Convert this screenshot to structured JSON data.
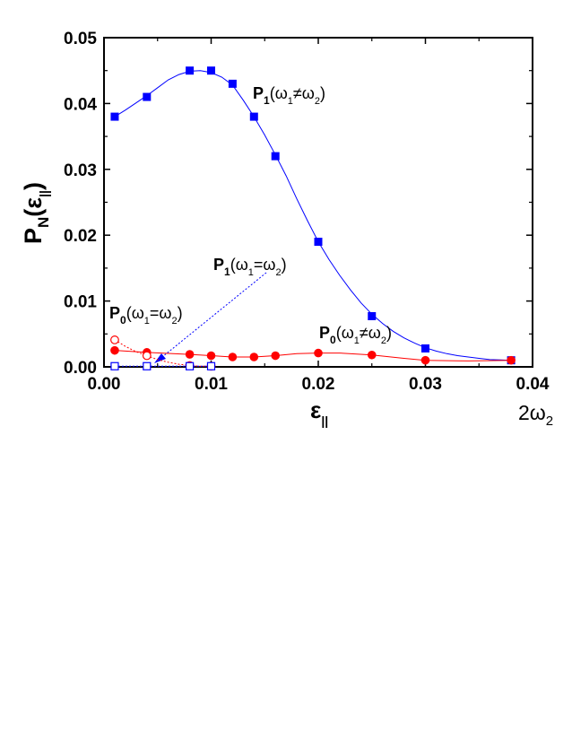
{
  "chart_data": {
    "type": "scatter",
    "xlabel": "ε",
    "xlabel_sub": "||",
    "ylabel": "P",
    "ylabel_sub": "N",
    "ylabel_arg_open": "(ε",
    "ylabel_arg_sub": "||",
    "ylabel_arg_close": ")",
    "x_extra_label": "2ω",
    "x_extra_label_sub": "2",
    "xlim": [
      0,
      0.04
    ],
    "ylim": [
      0,
      0.05
    ],
    "xticks": [
      "0.00",
      "0.01",
      "0.02",
      "0.03",
      "0.04"
    ],
    "yticks": [
      "0.00",
      "0.01",
      "0.02",
      "0.03",
      "0.04",
      "0.05"
    ],
    "grid": false,
    "colors": {
      "blue": "#0000ff",
      "red": "#ff0000"
    },
    "series": [
      {
        "name": "P1(ω1≠ω2)",
        "marker": "filled-square",
        "color": "#0000ff",
        "x": [
          0.001,
          0.004,
          0.008,
          0.01,
          0.012,
          0.014,
          0.016,
          0.02,
          0.025,
          0.03,
          0.038
        ],
        "y": [
          0.038,
          0.041,
          0.045,
          0.045,
          0.043,
          0.038,
          0.032,
          0.019,
          0.0077,
          0.0028,
          0.001
        ],
        "curve_x": [
          0.001,
          0.002,
          0.003,
          0.004,
          0.005,
          0.006,
          0.007,
          0.008,
          0.009,
          0.01,
          0.011,
          0.012,
          0.013,
          0.014,
          0.015,
          0.016,
          0.017,
          0.018,
          0.019,
          0.02,
          0.021,
          0.022,
          0.023,
          0.024,
          0.025,
          0.026,
          0.027,
          0.028,
          0.029,
          0.03,
          0.031,
          0.032,
          0.033,
          0.034,
          0.035,
          0.036,
          0.037,
          0.038
        ],
        "curve_y": [
          0.038,
          0.039,
          0.0401,
          0.0412,
          0.0424,
          0.0436,
          0.0444,
          0.0449,
          0.045,
          0.0447,
          0.044,
          0.0428,
          0.0405,
          0.038,
          0.0352,
          0.0322,
          0.029,
          0.0255,
          0.0222,
          0.019,
          0.0163,
          0.0139,
          0.0117,
          0.0097,
          0.008,
          0.0066,
          0.0054,
          0.0044,
          0.0036,
          0.0029,
          0.0024,
          0.002,
          0.0017,
          0.0015,
          0.0013,
          0.0011,
          0.00105,
          0.001
        ]
      },
      {
        "name": "P0(ω1≠ω2)",
        "marker": "filled-circle",
        "color": "#ff0000",
        "x": [
          0.001,
          0.004,
          0.008,
          0.01,
          0.012,
          0.014,
          0.016,
          0.02,
          0.025,
          0.03,
          0.038
        ],
        "y": [
          0.0025,
          0.0022,
          0.0019,
          0.0017,
          0.0015,
          0.0015,
          0.0017,
          0.0021,
          0.0018,
          0.001,
          0.001
        ],
        "curve_x": [
          0.001,
          0.004,
          0.008,
          0.01,
          0.012,
          0.014,
          0.016,
          0.018,
          0.02,
          0.022,
          0.025,
          0.028,
          0.03,
          0.034,
          0.038
        ],
        "curve_y": [
          0.0025,
          0.0022,
          0.0019,
          0.0017,
          0.0015,
          0.0015,
          0.0017,
          0.002,
          0.0021,
          0.0021,
          0.0018,
          0.0013,
          0.001,
          0.0009,
          0.001
        ]
      },
      {
        "name": "P0(ω1=ω2)",
        "marker": "open-circle",
        "color": "#ff0000",
        "x": [
          0.001,
          0.004,
          0.008,
          0.01
        ],
        "y": [
          0.0041,
          0.0017,
          0.0002,
          0.0001
        ],
        "curve_x": [
          0.001,
          0.002,
          0.003,
          0.004,
          0.005,
          0.006,
          0.007,
          0.008,
          0.009,
          0.01
        ],
        "curve_y": [
          0.0041,
          0.0031,
          0.0023,
          0.0017,
          0.0011,
          0.0007,
          0.0004,
          0.0002,
          0.0001,
          0.0001
        ]
      },
      {
        "name": "P1(ω1=ω2)",
        "marker": "open-square",
        "color": "#0000ff",
        "x": [
          0.001,
          0.004,
          0.008,
          0.01
        ],
        "y": [
          0.0001,
          0.0001,
          0.0001,
          0.0001
        ],
        "curve_x": [
          0.001,
          0.004,
          0.008,
          0.01
        ],
        "curve_y": [
          0.0001,
          0.0001,
          0.0001,
          0.0001
        ]
      }
    ],
    "annotations": [
      {
        "id": "p1_neq",
        "main": "P",
        "sub": "1",
        "text": "(ω",
        "sub2": "1",
        "mid": "≠ω",
        "sub3": "2",
        "end": ")"
      },
      {
        "id": "p1_eq",
        "main": "P",
        "sub": "1",
        "text": "(ω",
        "sub2": "1",
        "mid": "=ω",
        "sub3": "2",
        "end": ")"
      },
      {
        "id": "p0_eq",
        "main": "P",
        "sub": "0",
        "text": "(ω",
        "sub2": "1",
        "mid": "=ω",
        "sub3": "2",
        "end": ")"
      },
      {
        "id": "p0_neq",
        "main": "P",
        "sub": "0",
        "text": "(ω",
        "sub2": "1",
        "mid": "≠ω",
        "sub3": "2",
        "end": ")"
      }
    ]
  }
}
